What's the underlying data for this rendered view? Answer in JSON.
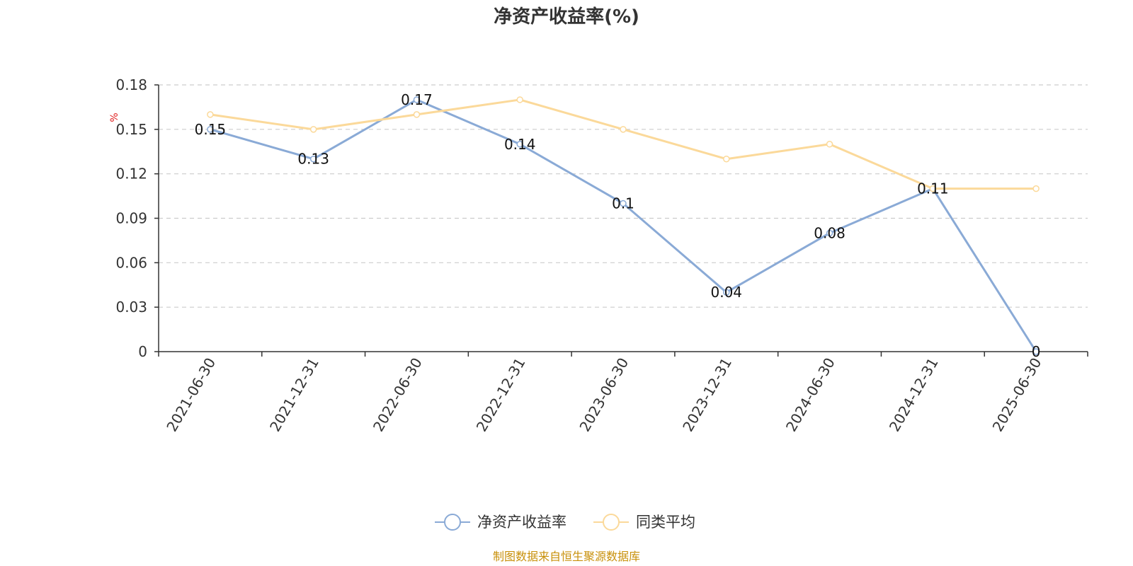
{
  "chart_data": {
    "type": "line",
    "title": "净资产收益率(%)",
    "unit": "%",
    "categories": [
      "2021-06-30",
      "2021-12-31",
      "2022-06-30",
      "2022-12-31",
      "2023-06-30",
      "2023-12-31",
      "2024-06-30",
      "2024-12-31",
      "2025-06-30"
    ],
    "ylim": [
      0,
      0.18
    ],
    "yticks": [
      0,
      0.03,
      0.06,
      0.09,
      0.12,
      0.15,
      0.18
    ],
    "ytick_labels": [
      "0",
      "0.03",
      "0.06",
      "0.09",
      "0.12",
      "0.15",
      "0.18"
    ],
    "grid": true,
    "legend_position": "bottom-center",
    "series": [
      {
        "name": "净资产收益率",
        "color": "#8aaad6",
        "values": [
          0.15,
          0.13,
          0.17,
          0.14,
          0.1,
          0.04,
          0.08,
          0.11,
          0
        ],
        "data_labels": [
          "0.15",
          "0.13",
          "0.17",
          "0.14",
          "0.1",
          "0.04",
          "0.08",
          "0.11",
          "0"
        ]
      },
      {
        "name": "同类平均",
        "color": "#fbd99a",
        "values": [
          0.16,
          0.15,
          0.16,
          0.17,
          0.15,
          0.13,
          0.14,
          0.11,
          0.11
        ]
      }
    ]
  },
  "source_note": "制图数据来自恒生聚源数据库"
}
